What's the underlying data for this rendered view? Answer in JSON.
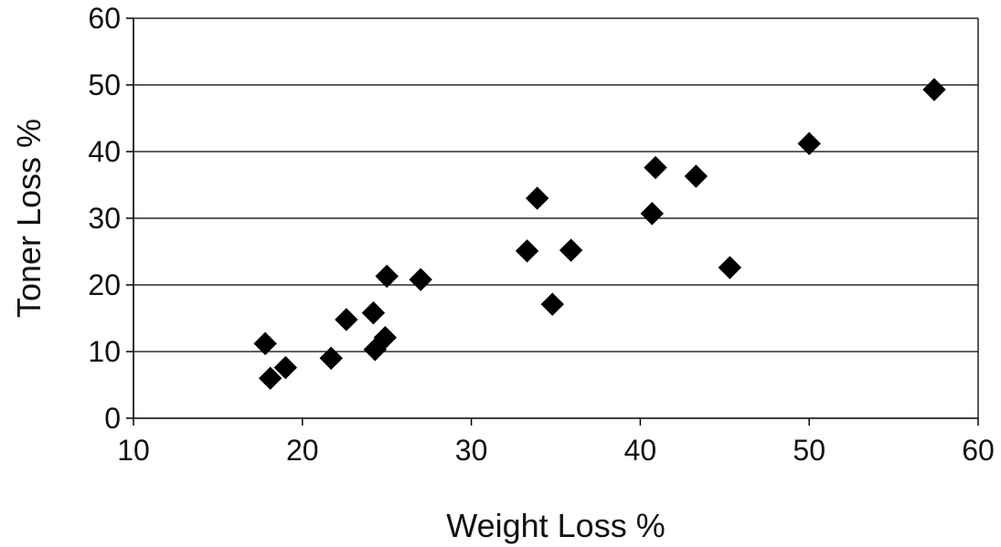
{
  "chart_data": {
    "type": "scatter",
    "title": "",
    "xlabel": "Weight Loss %",
    "ylabel": "Toner Loss %",
    "xlim": [
      10,
      60
    ],
    "ylim": [
      0,
      60
    ],
    "xticks": [
      "10",
      "20",
      "30",
      "40",
      "50",
      "60"
    ],
    "yticks": [
      "0",
      "10",
      "20",
      "30",
      "40",
      "50",
      "60"
    ],
    "grid": "horizontal",
    "legend": "none",
    "marker": "diamond",
    "marker_color": "#000000",
    "series": [
      {
        "points": [
          {
            "x": 17.8,
            "y": 11.2
          },
          {
            "x": 18.1,
            "y": 6.0
          },
          {
            "x": 19.0,
            "y": 7.6
          },
          {
            "x": 21.7,
            "y": 9.0
          },
          {
            "x": 22.6,
            "y": 14.8
          },
          {
            "x": 24.2,
            "y": 15.8
          },
          {
            "x": 24.3,
            "y": 10.3
          },
          {
            "x": 24.9,
            "y": 12.1
          },
          {
            "x": 25.0,
            "y": 21.3
          },
          {
            "x": 27.0,
            "y": 20.8
          },
          {
            "x": 33.3,
            "y": 25.1
          },
          {
            "x": 33.9,
            "y": 33.0
          },
          {
            "x": 34.8,
            "y": 17.1
          },
          {
            "x": 35.9,
            "y": 25.2
          },
          {
            "x": 40.7,
            "y": 30.7
          },
          {
            "x": 40.9,
            "y": 37.6
          },
          {
            "x": 43.3,
            "y": 36.3
          },
          {
            "x": 45.3,
            "y": 22.6
          },
          {
            "x": 50.0,
            "y": 41.2
          },
          {
            "x": 57.4,
            "y": 49.3
          }
        ]
      }
    ]
  }
}
